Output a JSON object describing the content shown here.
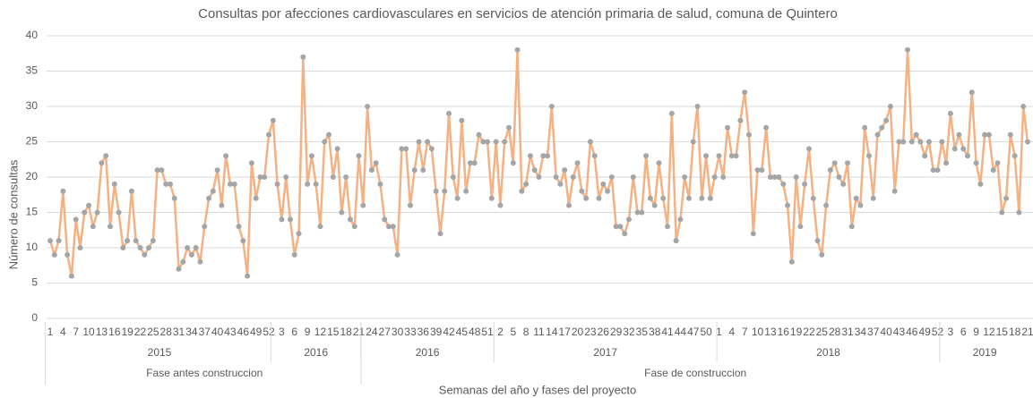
{
  "chart_data": {
    "type": "line",
    "title": "Consultas por afecciones cardiovasculares en servicios de atención primaria de salud, comuna de Quintero",
    "y_label": "Número de consultas",
    "x_label": "Semanas del año y fases del proyecto",
    "ylim": [
      0,
      40
    ],
    "yticks": [
      0,
      5,
      10,
      15,
      20,
      25,
      30,
      35,
      40
    ],
    "grid": true,
    "categories": [
      "1",
      null,
      null,
      "4",
      null,
      null,
      "7",
      null,
      null,
      "10",
      null,
      null,
      "13",
      null,
      null,
      "16",
      null,
      null,
      "19",
      null,
      null,
      "22",
      null,
      null,
      "25",
      null,
      null,
      "28",
      null,
      null,
      "31",
      null,
      null,
      "34",
      null,
      null,
      "37",
      null,
      null,
      "40",
      null,
      null,
      "43",
      null,
      null,
      "46",
      null,
      null,
      "49",
      null,
      null,
      "52",
      null,
      null,
      "3",
      null,
      null,
      "6",
      null,
      null,
      "9",
      null,
      null,
      "12",
      null,
      null,
      "15",
      null,
      null,
      "18",
      null,
      null,
      "21",
      null,
      null,
      "24",
      null,
      null,
      "27",
      null,
      null,
      "30",
      null,
      null,
      "33",
      null,
      null,
      "36",
      null,
      null,
      "39",
      null,
      null,
      "42",
      null,
      null,
      "45",
      null,
      null,
      "48",
      null,
      null,
      "51",
      null,
      null,
      "2",
      null,
      null,
      "5",
      null,
      null,
      "8",
      null,
      null,
      "11",
      null,
      null,
      "14",
      null,
      null,
      "17",
      null,
      null,
      "20",
      null,
      null,
      "23",
      null,
      null,
      "26",
      null,
      null,
      "29",
      null,
      null,
      "32",
      null,
      null,
      "35",
      null,
      null,
      "38",
      null,
      null,
      "41",
      null,
      null,
      "44",
      null,
      null,
      "47",
      null,
      null,
      "50",
      null,
      null,
      "1",
      null,
      null,
      "4",
      null,
      null,
      "7",
      null,
      null,
      "10",
      null,
      null,
      "13",
      null,
      null,
      "16",
      null,
      null,
      "19",
      null,
      null,
      "22",
      null,
      null,
      "25",
      null,
      null,
      "28",
      null,
      null,
      "31",
      null,
      null,
      "34",
      null,
      null,
      "37",
      null,
      null,
      "40",
      null,
      null,
      "43",
      null,
      null,
      "46",
      null,
      null,
      "49",
      null,
      null,
      "52",
      null,
      null,
      "3",
      null,
      null,
      "6",
      null,
      null,
      "9",
      null,
      null,
      "12",
      null,
      null,
      "15",
      null,
      null,
      "18",
      null,
      null,
      "21"
    ],
    "years": [
      {
        "label": "2015",
        "weeks": 52
      },
      {
        "label": "2016",
        "weeks": 21
      },
      {
        "label": "2016",
        "weeks": 31
      },
      {
        "label": "2017",
        "weeks": 52
      },
      {
        "label": "2018",
        "weeks": 52
      },
      {
        "label": "2019",
        "weeks": 21
      }
    ],
    "phases": [
      {
        "label": "Fase antes construccion",
        "weeks": 73
      },
      {
        "label": "Fase de construccion",
        "weeks": 156
      }
    ],
    "series": [
      {
        "name": "Consultas",
        "color": "#f4b183",
        "marker_color": "#a5a5a5",
        "values": [
          11,
          9,
          11,
          18,
          9,
          6,
          14,
          10,
          15,
          16,
          13,
          15,
          22,
          23,
          13,
          19,
          15,
          10,
          11,
          18,
          11,
          10,
          9,
          10,
          11,
          21,
          21,
          19,
          19,
          17,
          7,
          8,
          10,
          9,
          10,
          8,
          13,
          17,
          18,
          21,
          16,
          23,
          19,
          19,
          13,
          11,
          6,
          22,
          17,
          20,
          20,
          26,
          28,
          19,
          14,
          20,
          14,
          9,
          12,
          37,
          19,
          23,
          19,
          13,
          25,
          26,
          20,
          24,
          15,
          20,
          14,
          13,
          23,
          16,
          30,
          21,
          22,
          19,
          14,
          13,
          13,
          9,
          24,
          24,
          16,
          21,
          25,
          21,
          25,
          24,
          18,
          12,
          18,
          29,
          20,
          17,
          28,
          18,
          22,
          22,
          26,
          25,
          25,
          17,
          25,
          16,
          25,
          27,
          22,
          38,
          18,
          19,
          23,
          21,
          20,
          23,
          23,
          30,
          20,
          19,
          21,
          16,
          20,
          22,
          18,
          17,
          25,
          23,
          17,
          19,
          18,
          20,
          13,
          13,
          12,
          14,
          20,
          15,
          15,
          23,
          17,
          16,
          22,
          17,
          13,
          29,
          11,
          14,
          20,
          17,
          25,
          30,
          17,
          23,
          17,
          20,
          23,
          20,
          27,
          23,
          23,
          28,
          32,
          26,
          12,
          21,
          21,
          27,
          20,
          20,
          20,
          19,
          16,
          8,
          20,
          13,
          19,
          24,
          17,
          11,
          9,
          16,
          21,
          22,
          20,
          19,
          22,
          13,
          17,
          16,
          27,
          23,
          17,
          26,
          27,
          28,
          30,
          18,
          25,
          25,
          38,
          25,
          26,
          25,
          23,
          25,
          21,
          21,
          25,
          22,
          29,
          24,
          26,
          24,
          23,
          32,
          22,
          19,
          26,
          26,
          21,
          22,
          15,
          17,
          26,
          23,
          15,
          30,
          25
        ]
      }
    ]
  }
}
